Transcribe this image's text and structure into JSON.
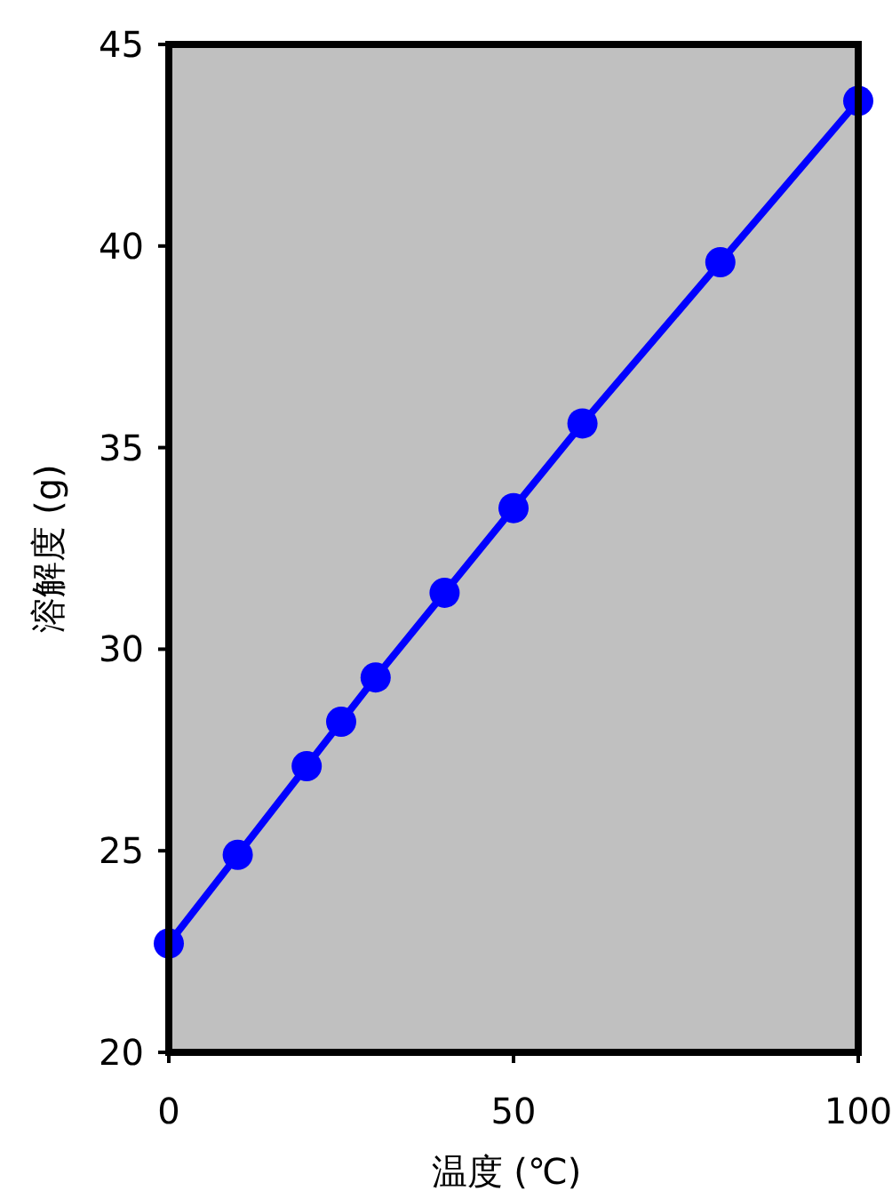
{
  "chart_data": {
    "type": "line",
    "xlabel": "温度 (℃)",
    "ylabel": "溶解度 (g)",
    "xlim": [
      0,
      100
    ],
    "ylim": [
      20,
      45
    ],
    "xticks": [
      0,
      50,
      100
    ],
    "yticks": [
      20,
      25,
      30,
      35,
      40,
      45
    ],
    "x": [
      0,
      10,
      20,
      25,
      30,
      40,
      50,
      60,
      80,
      100
    ],
    "series": [
      {
        "color": "#0000ff",
        "values": [
          22.7,
          24.9,
          27.1,
          28.2,
          29.3,
          31.4,
          33.5,
          35.6,
          39.6,
          43.6
        ]
      }
    ],
    "marker": "circle",
    "line_style": "solid",
    "grid": false
  }
}
